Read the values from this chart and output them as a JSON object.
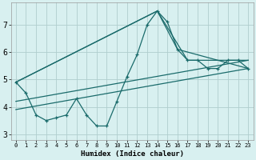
{
  "xlabel": "Humidex (Indice chaleur)",
  "bg_color": "#d8f0f0",
  "line_color": "#1a6b6b",
  "grid_color": "#b0cece",
  "xlim": [
    -0.5,
    23.5
  ],
  "ylim": [
    2.8,
    7.8
  ],
  "xticks": [
    0,
    1,
    2,
    3,
    4,
    5,
    6,
    7,
    8,
    9,
    10,
    11,
    12,
    13,
    14,
    15,
    16,
    17,
    18,
    19,
    20,
    21,
    22,
    23
  ],
  "yticks": [
    3,
    4,
    5,
    6,
    7
  ],
  "series": [
    {
      "x": [
        0,
        1,
        2,
        3,
        4,
        5,
        6,
        7,
        8,
        9,
        10,
        11,
        12,
        13,
        14,
        15,
        16,
        17,
        18,
        19,
        20,
        21,
        22,
        23
      ],
      "y": [
        4.9,
        4.5,
        3.7,
        3.5,
        3.6,
        3.7,
        4.3,
        3.7,
        3.3,
        3.3,
        4.2,
        5.1,
        5.9,
        7.0,
        7.5,
        7.1,
        6.1,
        5.7,
        5.7,
        5.4,
        5.4,
        5.7,
        5.7,
        5.4
      ],
      "marker": true
    },
    {
      "x": [
        0,
        14,
        17,
        23
      ],
      "y": [
        4.9,
        7.5,
        5.7,
        5.7
      ],
      "marker": false
    },
    {
      "x": [
        0,
        14,
        16,
        23
      ],
      "y": [
        4.9,
        7.5,
        6.1,
        5.4
      ],
      "marker": false
    },
    {
      "x": [
        0,
        23
      ],
      "y": [
        3.9,
        5.4
      ],
      "marker": false
    },
    {
      "x": [
        0,
        23
      ],
      "y": [
        4.2,
        5.7
      ],
      "marker": false
    }
  ]
}
